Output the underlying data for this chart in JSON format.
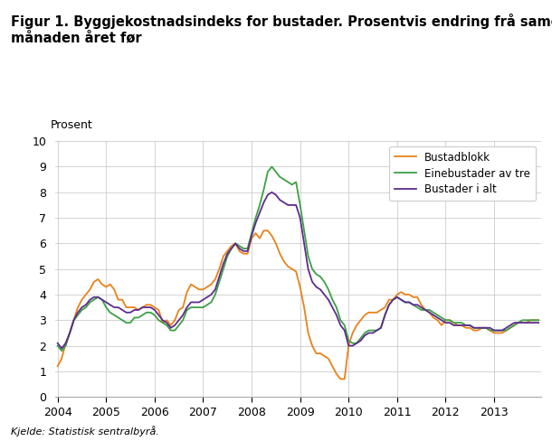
{
  "title": "Figur 1. Byggjekostnadsindeks for bustader. Prosentvis endring frå same\nmånaden året før",
  "ylabel": "Prosent",
  "source": "Kjelde: Statistisk sentralbyrå.",
  "ylim": [
    0,
    10
  ],
  "yticks": [
    0,
    1,
    2,
    3,
    4,
    5,
    6,
    7,
    8,
    9,
    10
  ],
  "legend": [
    "Bustadblokk",
    "Einebustader av tre",
    "Bustader i alt"
  ],
  "colors": [
    "#E8821A",
    "#3CA044",
    "#5B2D8E"
  ],
  "series": {
    "bustadblokk": [
      1.2,
      1.5,
      2.1,
      2.5,
      3.0,
      3.5,
      3.8,
      4.0,
      4.2,
      4.5,
      4.6,
      4.4,
      4.3,
      4.4,
      4.2,
      3.8,
      3.8,
      3.5,
      3.5,
      3.5,
      3.4,
      3.5,
      3.6,
      3.6,
      3.5,
      3.4,
      2.9,
      3.0,
      2.8,
      3.0,
      3.4,
      3.5,
      4.1,
      4.4,
      4.3,
      4.2,
      4.2,
      4.3,
      4.4,
      4.6,
      5.0,
      5.5,
      5.7,
      5.9,
      6.0,
      5.7,
      5.6,
      5.6,
      6.2,
      6.4,
      6.2,
      6.5,
      6.5,
      6.3,
      6.0,
      5.6,
      5.3,
      5.1,
      5.0,
      4.9,
      4.3,
      3.5,
      2.5,
      2.0,
      1.7,
      1.7,
      1.6,
      1.5,
      1.2,
      0.9,
      0.7,
      0.7,
      2.0,
      2.5,
      2.8,
      3.0,
      3.2,
      3.3,
      3.3,
      3.3,
      3.4,
      3.5,
      3.8,
      3.8,
      4.0,
      4.1,
      4.0,
      4.0,
      3.9,
      3.9,
      3.6,
      3.4,
      3.3,
      3.1,
      3.0,
      2.8,
      3.0,
      3.0,
      2.9,
      2.8,
      2.8,
      2.7,
      2.7,
      2.6,
      2.6,
      2.7,
      2.7,
      2.6,
      2.5,
      2.5,
      2.5,
      2.6,
      2.7,
      2.8,
      2.9,
      2.9,
      2.9,
      3.0,
      3.0,
      3.0
    ],
    "einebustader": [
      2.0,
      1.8,
      2.0,
      2.5,
      3.0,
      3.2,
      3.4,
      3.5,
      3.7,
      3.8,
      3.9,
      3.8,
      3.5,
      3.3,
      3.2,
      3.1,
      3.0,
      2.9,
      2.9,
      3.1,
      3.1,
      3.2,
      3.3,
      3.3,
      3.2,
      3.0,
      2.9,
      2.8,
      2.6,
      2.6,
      2.8,
      3.0,
      3.4,
      3.5,
      3.5,
      3.5,
      3.5,
      3.6,
      3.7,
      4.0,
      4.5,
      5.0,
      5.5,
      5.8,
      6.0,
      5.9,
      5.8,
      5.8,
      6.4,
      7.0,
      7.5,
      8.1,
      8.8,
      9.0,
      8.8,
      8.6,
      8.5,
      8.4,
      8.3,
      8.4,
      7.5,
      6.5,
      5.5,
      5.0,
      4.8,
      4.7,
      4.5,
      4.2,
      3.8,
      3.5,
      3.0,
      2.8,
      2.2,
      2.1,
      2.1,
      2.3,
      2.5,
      2.6,
      2.6,
      2.6,
      2.7,
      3.2,
      3.6,
      3.8,
      3.9,
      3.8,
      3.7,
      3.7,
      3.6,
      3.5,
      3.4,
      3.4,
      3.4,
      3.3,
      3.2,
      3.1,
      3.0,
      3.0,
      2.9,
      2.9,
      2.9,
      2.8,
      2.8,
      2.7,
      2.7,
      2.7,
      2.7,
      2.6,
      2.6,
      2.6,
      2.6,
      2.6,
      2.7,
      2.8,
      2.9,
      3.0,
      3.0,
      3.0,
      3.0,
      3.0
    ],
    "bustader_i_alt": [
      2.1,
      1.9,
      2.1,
      2.5,
      3.0,
      3.3,
      3.5,
      3.6,
      3.8,
      3.9,
      3.9,
      3.8,
      3.7,
      3.6,
      3.5,
      3.5,
      3.4,
      3.3,
      3.3,
      3.4,
      3.4,
      3.5,
      3.5,
      3.5,
      3.4,
      3.2,
      3.0,
      2.9,
      2.7,
      2.8,
      3.0,
      3.2,
      3.5,
      3.7,
      3.7,
      3.7,
      3.8,
      3.9,
      4.0,
      4.2,
      4.7,
      5.2,
      5.6,
      5.8,
      6.0,
      5.8,
      5.7,
      5.7,
      6.3,
      6.8,
      7.2,
      7.6,
      7.9,
      8.0,
      7.9,
      7.7,
      7.6,
      7.5,
      7.5,
      7.5,
      7.0,
      6.0,
      5.0,
      4.5,
      4.3,
      4.2,
      4.0,
      3.8,
      3.5,
      3.2,
      2.8,
      2.6,
      2.0,
      2.0,
      2.1,
      2.2,
      2.4,
      2.5,
      2.5,
      2.6,
      2.7,
      3.2,
      3.6,
      3.8,
      3.9,
      3.8,
      3.7,
      3.7,
      3.6,
      3.6,
      3.5,
      3.4,
      3.3,
      3.2,
      3.1,
      3.0,
      2.9,
      2.9,
      2.8,
      2.8,
      2.8,
      2.8,
      2.8,
      2.7,
      2.7,
      2.7,
      2.7,
      2.7,
      2.6,
      2.6,
      2.6,
      2.7,
      2.8,
      2.9,
      2.9,
      2.9,
      2.9,
      2.9,
      2.9,
      2.9
    ]
  },
  "x_start_year": 2004,
  "x_end_year": 2014,
  "xtick_years": [
    2004,
    2005,
    2006,
    2007,
    2008,
    2009,
    2010,
    2011,
    2012,
    2013
  ]
}
